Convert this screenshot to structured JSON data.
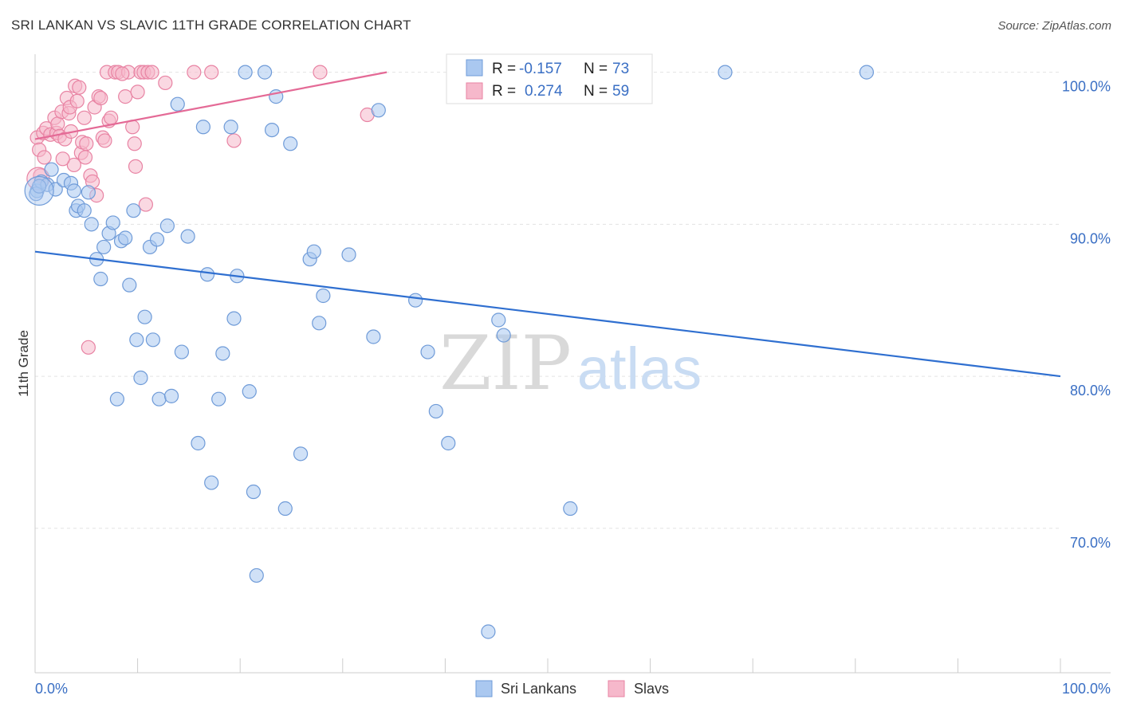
{
  "title": "SRI LANKAN VS SLAVIC 11TH GRADE CORRELATION CHART",
  "source": "Source: ZipAtlas.com",
  "watermark": {
    "zip": "ZIP",
    "atlas": "atlas"
  },
  "colors": {
    "blue_fill": "#aac8f0",
    "blue_stroke": "#6f9bd8",
    "blue_line": "#2f6fd0",
    "pink_fill": "#f6b8cb",
    "pink_stroke": "#e883a3",
    "pink_line": "#e46a96",
    "grid": "#e3e3e3",
    "axis_text": "#3a6fc4"
  },
  "legend": {
    "rows": [
      {
        "series": "Sri Lankans",
        "r_label": "R =",
        "r_value": "-0.157",
        "n_label": "N =",
        "n_value": "73"
      },
      {
        "series": "Slavs",
        "r_label": "R =",
        "r_value": "0.274",
        "n_label": "N =",
        "n_value": "59"
      }
    ]
  },
  "chart_data": {
    "type": "scatter",
    "title": "SRI LANKAN VS SLAVIC 11TH GRADE CORRELATION CHART",
    "xlabel": "",
    "ylabel": "11th Grade",
    "xlim": [
      0,
      100
    ],
    "ylim": [
      60.5,
      101.5
    ],
    "x_tick_labels": [
      "0.0%",
      "100.0%"
    ],
    "y_ticks": [
      70,
      80,
      90,
      100
    ],
    "y_tick_labels": [
      "70.0%",
      "80.0%",
      "90.0%",
      "100.0%"
    ],
    "grid": true,
    "legend_position": "top-center",
    "series": [
      {
        "name": "Sri Lankans",
        "color": "#aac8f0",
        "trend": {
          "x": [
            0,
            100
          ],
          "y": [
            88.2,
            80.0
          ]
        },
        "points": [
          [
            0.2,
            92.2
          ],
          [
            0.6,
            92.8
          ],
          [
            1.2,
            92.6
          ],
          [
            1.6,
            93.6
          ],
          [
            2.0,
            92.3
          ],
          [
            2.8,
            92.9
          ],
          [
            3.5,
            92.7
          ],
          [
            3.8,
            92.2
          ],
          [
            4.0,
            90.9
          ],
          [
            4.2,
            91.2
          ],
          [
            4.8,
            90.9
          ],
          [
            5.2,
            92.1
          ],
          [
            5.5,
            90.0
          ],
          [
            6.0,
            87.7
          ],
          [
            6.4,
            86.4
          ],
          [
            6.7,
            88.5
          ],
          [
            7.2,
            89.4
          ],
          [
            7.6,
            90.1
          ],
          [
            8.0,
            78.5
          ],
          [
            8.4,
            88.9
          ],
          [
            8.8,
            89.1
          ],
          [
            9.2,
            86.0
          ],
          [
            9.6,
            90.9
          ],
          [
            9.9,
            82.4
          ],
          [
            10.3,
            79.9
          ],
          [
            10.7,
            83.9
          ],
          [
            11.2,
            88.5
          ],
          [
            11.5,
            82.4
          ],
          [
            11.9,
            89.0
          ],
          [
            12.1,
            78.5
          ],
          [
            12.9,
            89.9
          ],
          [
            13.3,
            78.7
          ],
          [
            13.9,
            97.9
          ],
          [
            14.3,
            81.6
          ],
          [
            14.9,
            89.2
          ],
          [
            15.9,
            75.6
          ],
          [
            16.4,
            96.4
          ],
          [
            16.8,
            86.7
          ],
          [
            17.2,
            73.0
          ],
          [
            17.9,
            78.5
          ],
          [
            18.3,
            81.5
          ],
          [
            19.1,
            96.4
          ],
          [
            19.4,
            83.8
          ],
          [
            19.7,
            86.6
          ],
          [
            20.5,
            100.0
          ],
          [
            20.9,
            79.0
          ],
          [
            21.3,
            72.4
          ],
          [
            21.6,
            66.9
          ],
          [
            22.4,
            100.0
          ],
          [
            23.1,
            96.2
          ],
          [
            23.5,
            98.4
          ],
          [
            24.4,
            71.3
          ],
          [
            24.9,
            95.3
          ],
          [
            25.9,
            74.9
          ],
          [
            26.8,
            87.7
          ],
          [
            27.2,
            88.2
          ],
          [
            27.7,
            83.5
          ],
          [
            28.1,
            85.3
          ],
          [
            30.6,
            88.0
          ],
          [
            33.0,
            82.6
          ],
          [
            33.5,
            97.5
          ],
          [
            37.1,
            85.0
          ],
          [
            38.3,
            81.6
          ],
          [
            39.1,
            77.7
          ],
          [
            40.3,
            75.6
          ],
          [
            44.2,
            63.2
          ],
          [
            45.2,
            83.7
          ],
          [
            45.7,
            82.7
          ],
          [
            52.2,
            71.3
          ],
          [
            67.3,
            100.0
          ],
          [
            81.1,
            100.0
          ],
          [
            0.1,
            92.0
          ],
          [
            0.4,
            92.5
          ]
        ]
      },
      {
        "name": "Slavs",
        "color": "#f6b8cb",
        "trend": {
          "x": [
            0,
            34.3
          ],
          "y": [
            95.6,
            100.0
          ]
        },
        "points": [
          [
            0.2,
            95.7
          ],
          [
            0.4,
            94.9
          ],
          [
            0.5,
            93.2
          ],
          [
            0.8,
            96.0
          ],
          [
            0.9,
            94.4
          ],
          [
            1.1,
            96.3
          ],
          [
            1.5,
            95.9
          ],
          [
            1.9,
            97.0
          ],
          [
            2.1,
            96.0
          ],
          [
            2.2,
            96.6
          ],
          [
            2.4,
            95.8
          ],
          [
            2.6,
            97.4
          ],
          [
            2.9,
            95.6
          ],
          [
            3.1,
            98.3
          ],
          [
            3.3,
            97.3
          ],
          [
            3.4,
            97.7
          ],
          [
            3.5,
            96.1
          ],
          [
            3.8,
            93.9
          ],
          [
            3.9,
            99.1
          ],
          [
            4.1,
            98.1
          ],
          [
            4.3,
            99.0
          ],
          [
            4.5,
            94.7
          ],
          [
            4.6,
            95.4
          ],
          [
            4.8,
            97.0
          ],
          [
            4.9,
            94.4
          ],
          [
            5.0,
            95.3
          ],
          [
            5.2,
            81.9
          ],
          [
            5.4,
            93.2
          ],
          [
            5.6,
            92.8
          ],
          [
            5.8,
            97.7
          ],
          [
            6.0,
            91.9
          ],
          [
            6.2,
            98.4
          ],
          [
            6.4,
            98.3
          ],
          [
            6.6,
            95.7
          ],
          [
            6.8,
            95.5
          ],
          [
            7.0,
            100.0
          ],
          [
            7.2,
            96.8
          ],
          [
            7.4,
            97.0
          ],
          [
            7.8,
            100.0
          ],
          [
            8.1,
            100.0
          ],
          [
            8.8,
            98.4
          ],
          [
            9.1,
            100.0
          ],
          [
            9.5,
            96.4
          ],
          [
            9.7,
            95.3
          ],
          [
            10.0,
            98.7
          ],
          [
            10.3,
            100.0
          ],
          [
            10.6,
            100.0
          ],
          [
            10.8,
            91.3
          ],
          [
            11.0,
            100.0
          ],
          [
            11.4,
            100.0
          ],
          [
            12.7,
            99.3
          ],
          [
            15.5,
            100.0
          ],
          [
            17.2,
            100.0
          ],
          [
            19.4,
            95.5
          ],
          [
            27.8,
            100.0
          ],
          [
            32.4,
            97.2
          ],
          [
            9.8,
            93.8
          ],
          [
            2.7,
            94.3
          ],
          [
            8.5,
            99.9
          ]
        ]
      }
    ]
  }
}
